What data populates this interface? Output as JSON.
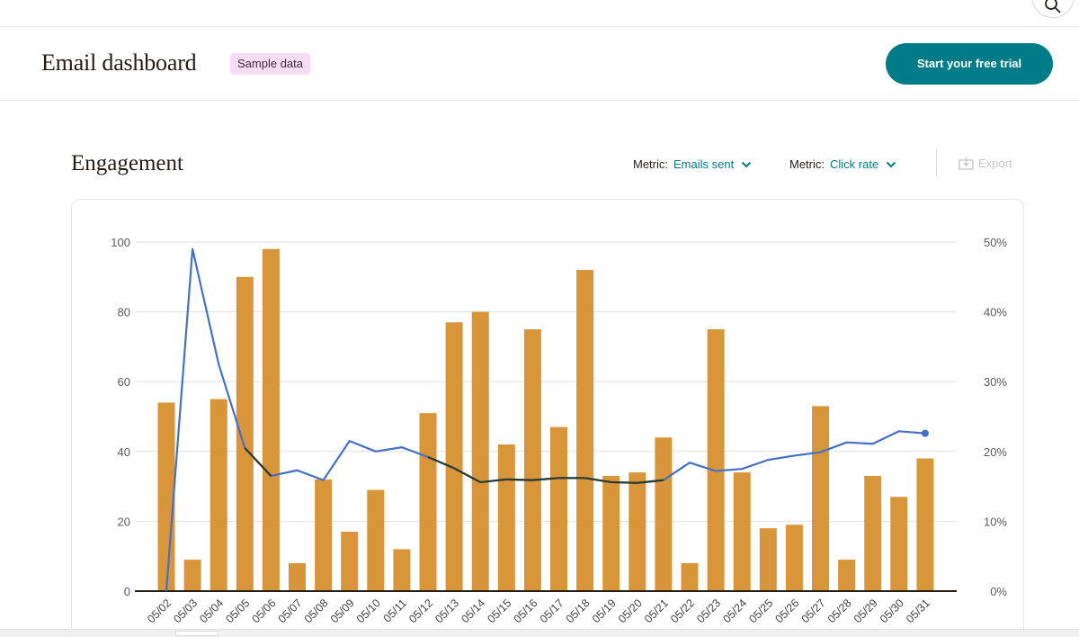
{
  "header": {
    "title": "Email dashboard",
    "badge": "Sample data",
    "cta": "Start your free trial"
  },
  "icons": {
    "search": "search-icon",
    "chevron": "chevron-down-icon",
    "export": "export-icon"
  },
  "engagement": {
    "title": "Engagement",
    "metric1": {
      "label": "Metric:",
      "value": "Emails sent"
    },
    "metric2": {
      "label": "Metric:",
      "value": "Click rate"
    },
    "export": "Export"
  },
  "colors": {
    "accent": "#007c89",
    "bar": "#d9953a",
    "line_blue": "#4471c4",
    "line_dark": "#2b3a2e",
    "badge_bg": "#f6dcf5"
  },
  "chart_data": {
    "type": "bar",
    "categories": [
      "05/02",
      "05/03",
      "05/04",
      "05/05",
      "05/06",
      "05/07",
      "05/08",
      "05/09",
      "05/10",
      "05/11",
      "05/12",
      "05/13",
      "05/14",
      "05/15",
      "05/16",
      "05/17",
      "05/18",
      "05/19",
      "05/20",
      "05/21",
      "05/22",
      "05/23",
      "05/24",
      "05/25",
      "05/26",
      "05/27",
      "05/28",
      "05/29",
      "05/30",
      "05/31"
    ],
    "series": [
      {
        "type": "bar",
        "axis": "left",
        "values": [
          54,
          9,
          55,
          90,
          98,
          8,
          32,
          17,
          29,
          12,
          51,
          77,
          80,
          42,
          75,
          47,
          92,
          33,
          34,
          44,
          8,
          75,
          34,
          18,
          19,
          53,
          9,
          33,
          27,
          38
        ]
      },
      {
        "type": "line",
        "axis": "right",
        "values": [
          0,
          49,
          32.5,
          20.5,
          16.5,
          17.3,
          15.9,
          21.5,
          20,
          20.6,
          19.2,
          17.6,
          15.6,
          16,
          15.9,
          16.2,
          16.2,
          15.6,
          15.5,
          15.9,
          18.4,
          17.2,
          17.5,
          18.8,
          19.4,
          19.9,
          21.3,
          21.1,
          22.9,
          22.6
        ]
      }
    ],
    "ylim": [
      0,
      100
    ],
    "y_ticks": [
      "0",
      "20",
      "40",
      "60",
      "80",
      "100"
    ],
    "y2lim": [
      0,
      50
    ],
    "y2_ticks": [
      "0%",
      "10%",
      "20%",
      "30%",
      "40%",
      "50%"
    ],
    "grid": true
  }
}
